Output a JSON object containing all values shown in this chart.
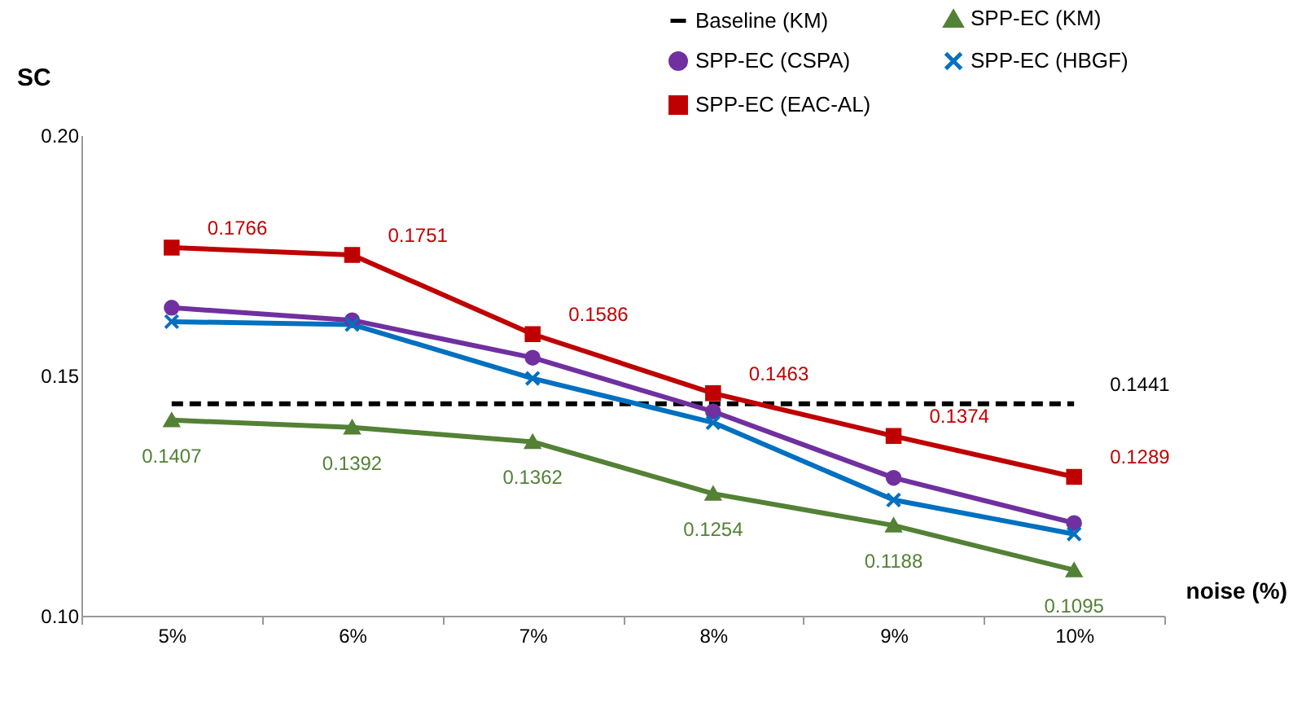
{
  "chart_data": {
    "type": "line",
    "xlabel": "noise (%)",
    "ylabel": "SC",
    "categories": [
      "5%",
      "6%",
      "7%",
      "8%",
      "9%",
      "10%"
    ],
    "ylim": [
      0.1,
      0.2
    ],
    "yticks": [
      {
        "value": 0.1,
        "label": "0.10"
      },
      {
        "value": 0.15,
        "label": "0.15"
      },
      {
        "value": 0.2,
        "label": "0.20"
      }
    ],
    "legend": "top right",
    "series": [
      {
        "name": "Baseline (KM)",
        "color": "#000000",
        "marker": "none",
        "line_style": "dashed",
        "values": [
          0.1441,
          0.1441,
          0.1441,
          0.1441,
          0.1441,
          0.1441
        ],
        "value_labels": [
          null,
          null,
          null,
          null,
          null,
          "0.1441"
        ]
      },
      {
        "name": "SPP-EC (KM)",
        "color": "#538135",
        "marker": "triangle",
        "line_style": "solid",
        "values": [
          0.1407,
          0.1392,
          0.1362,
          0.1254,
          0.1188,
          0.1095
        ],
        "value_labels": [
          "0.1407",
          "0.1392",
          "0.1362",
          "0.1254",
          "0.1188",
          "0.1095"
        ]
      },
      {
        "name": "SPP-EC (CSPA)",
        "color": "#7030a0",
        "marker": "circle",
        "line_style": "solid",
        "values": [
          0.1641,
          0.1615,
          0.1537,
          0.1425,
          0.1287,
          0.1193
        ]
      },
      {
        "name": "SPP-EC (HBGF)",
        "color": "#0070c0",
        "marker": "cross",
        "line_style": "solid",
        "values": [
          0.1612,
          0.1606,
          0.1494,
          0.1402,
          0.1241,
          0.117
        ]
      },
      {
        "name": "SPP-EC (EAC-AL)",
        "color": "#c00000",
        "marker": "square",
        "line_style": "solid",
        "values": [
          0.1766,
          0.1751,
          0.1586,
          0.1463,
          0.1374,
          0.1289
        ],
        "value_labels": [
          "0.1766",
          "0.1751",
          "0.1586",
          "0.1463",
          "0.1374",
          "0.1289"
        ]
      }
    ]
  }
}
